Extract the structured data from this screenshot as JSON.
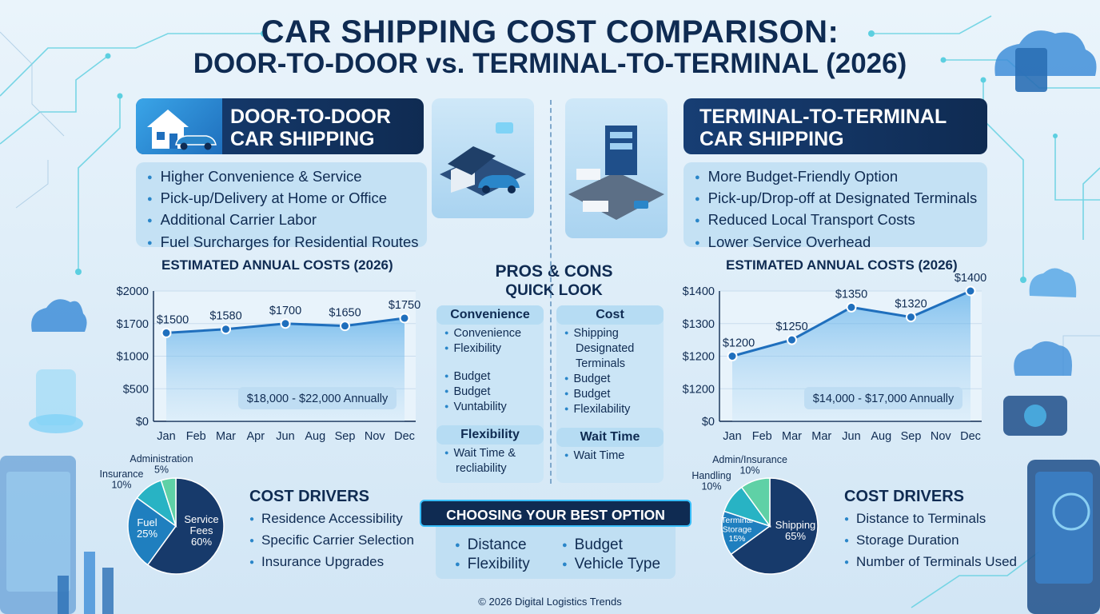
{
  "title": {
    "line1": "CAR SHIPPING COST COMPARISON:",
    "line2": "DOOR-TO-DOOR vs. TERMINAL-TO-TERMINAL (2026)"
  },
  "door": {
    "header_line1": "DOOR-TO-DOOR",
    "header_line2": "CAR SHIPPING",
    "bullets": [
      "Higher Convenience & Service",
      "Pick-up/Delivery at Home or Office",
      "Additional Carrier Labor",
      "Fuel Surcharges for Residential Routes"
    ],
    "chart_title": "ESTIMATED ANNUAL COSTS (2026)",
    "drivers_title": "COST DRIVERS",
    "drivers": [
      "Residence Accessibility",
      "Specific Carrier Selection",
      "Insurance Upgrades"
    ]
  },
  "terminal": {
    "header_line1": "TERMINAL-TO-TERMINAL",
    "header_line2": "CAR SHIPPING",
    "bullets": [
      "More Budget-Friendly Option",
      "Pick-up/Drop-off at Designated Terminals",
      "Reduced Local Transport Costs",
      "Lower Service Overhead"
    ],
    "chart_title": "ESTIMATED ANNUAL COSTS (2026)",
    "drivers_title": "COST DRIVERS",
    "drivers": [
      "Distance to Terminals",
      "Storage Duration",
      "Number of Terminals Used"
    ]
  },
  "pros_cons": {
    "title_line1": "PROS & CONS",
    "title_line2": "QUICK LOOK",
    "convenience_label": "Convenience",
    "convenience_items": [
      "Convenience",
      "Flexibility",
      "Budget",
      "Budget",
      "Vuntability"
    ],
    "cost_label": "Cost",
    "cost_items": [
      "Shipping",
      "Designated",
      "Terminals",
      "Budget",
      "Budget",
      "Flexilability"
    ],
    "flexibility_label": "Flexibility",
    "flexibility_items": [
      "Wait Time &",
      "recliability"
    ],
    "wait_label": "Wait Time",
    "wait_items": [
      "Wait Time"
    ]
  },
  "choose": {
    "header": "CHOOSING YOUR BEST OPTION",
    "items": [
      "Distance",
      "Budget",
      "Flexibility",
      "Vehicle Type"
    ]
  },
  "footer": "© 2026 Digital Logistics Trends",
  "colors": {
    "navy": "#0f2b52",
    "accent": "#1f6fbd",
    "pie_dark": "#173a6b",
    "pie_mid": "#1f7fbf",
    "pie_teal": "#28b3c4",
    "pie_green": "#5fd1a6"
  },
  "chart_data": [
    {
      "type": "line",
      "title": "ESTIMATED ANNUAL COSTS (2026)",
      "x_ticks": [
        "Jan",
        "Feb",
        "Mar",
        "Apr",
        "Jun",
        "Aug",
        "Sep",
        "Nov",
        "Dec"
      ],
      "y_ticks": [
        "$0",
        "$500",
        "$1000",
        "$1700",
        "$2000"
      ],
      "points": [
        {
          "x": "Jan",
          "y": 1500,
          "label": "$1500"
        },
        {
          "x": "Mar",
          "y": 1580,
          "label": "$1580"
        },
        {
          "x": "Jun",
          "y": 1700,
          "label": "$1700"
        },
        {
          "x": "Sep",
          "y": 1650,
          "label": "$1650"
        },
        {
          "x": "Dec",
          "y": 1750,
          "label": "$1750"
        }
      ],
      "annotation": "$18,000 - $22,000 Annually",
      "grid": true
    },
    {
      "type": "line",
      "title": "ESTIMATED ANNUAL COSTS (2026)",
      "x_ticks": [
        "Jan",
        "Feb",
        "Mar",
        "Mar",
        "Jun",
        "Aug",
        "Sep",
        "Nov",
        "Dec"
      ],
      "y_ticks": [
        "$0",
        "$1200",
        "$1200",
        "$1300",
        "$1400"
      ],
      "points": [
        {
          "x": "Jan",
          "y": 1200,
          "label": "$1200"
        },
        {
          "x": "Mar",
          "y": 1250,
          "label": "$1250"
        },
        {
          "x": "Jun",
          "y": 1350,
          "label": "$1350"
        },
        {
          "x": "Sep",
          "y": 1320,
          "label": "$1320"
        },
        {
          "x": "Dec",
          "y": 1400,
          "label": "$1400"
        }
      ],
      "annotation": "$14,000 - $17,000 Annually",
      "grid": true
    },
    {
      "type": "pie",
      "slices": [
        {
          "name": "Service Fees",
          "value": 60,
          "label_lines": [
            "Service",
            "Fees",
            "60%"
          ],
          "color": "#173a6b"
        },
        {
          "name": "Fuel",
          "value": 25,
          "label_lines": [
            "Fuel",
            "25%"
          ],
          "color": "#1f7fbf"
        },
        {
          "name": "Insurance",
          "value": 10,
          "label_lines": [
            "Insurance",
            "10%"
          ],
          "color": "#28b3c4"
        },
        {
          "name": "Administration",
          "value": 5,
          "label_lines": [
            "Administration",
            "5%"
          ],
          "color": "#5fd1a6"
        }
      ]
    },
    {
      "type": "pie",
      "slices": [
        {
          "name": "Shipping",
          "value": 65,
          "label_lines": [
            "Shipping",
            "65%"
          ],
          "color": "#173a6b"
        },
        {
          "name": "Terminal Storage",
          "value": 15,
          "label_lines": [
            "Terminal",
            "Storage",
            "15%"
          ],
          "color": "#1f7fbf"
        },
        {
          "name": "Handling",
          "value": 10,
          "label_lines": [
            "Handling",
            "10%"
          ],
          "color": "#28b3c4"
        },
        {
          "name": "Admin/Insurance",
          "value": 10,
          "label_lines": [
            "Admin/Insurance",
            "10%"
          ],
          "color": "#5fd1a6"
        }
      ]
    }
  ]
}
